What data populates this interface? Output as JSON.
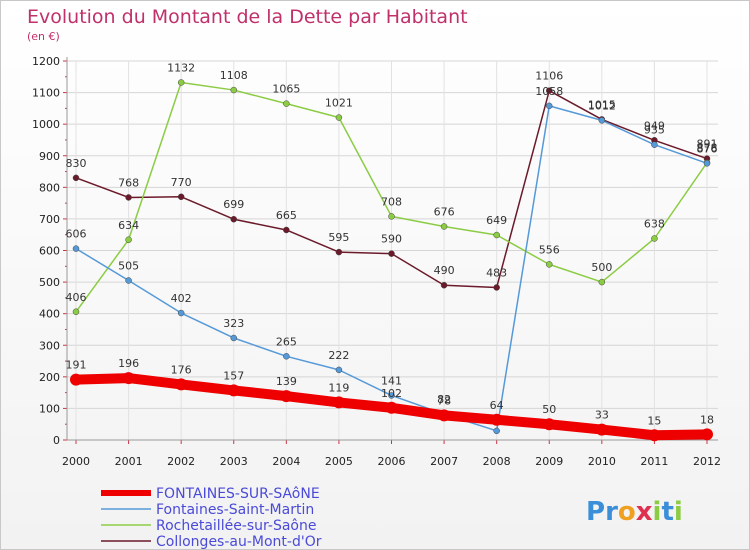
{
  "chart_data": {
    "type": "line",
    "title": "Evolution du Montant de la Dette par Habitant",
    "subtitle": "(en €)",
    "xlabel": "",
    "ylabel": "",
    "ylim": [
      0,
      1200
    ],
    "yticks": [
      0,
      100,
      200,
      300,
      400,
      500,
      600,
      700,
      800,
      900,
      1000,
      1100,
      1200
    ],
    "x": [
      "2000",
      "2001",
      "2002",
      "2003",
      "2004",
      "2005",
      "2006",
      "2007",
      "2008",
      "2009",
      "2010",
      "2011",
      "2012"
    ],
    "grid": true,
    "legend_position": "bottom-left",
    "series": [
      {
        "name": "Collonges-au-Mont-d'Or",
        "color": "#6b1a2a",
        "values": [
          830,
          768,
          770,
          699,
          665,
          595,
          590,
          490,
          483,
          1106,
          1015,
          949,
          891
        ],
        "labels": [
          "830",
          "768",
          "770",
          "699",
          "665",
          "595",
          "590",
          "490",
          "483",
          "1106",
          "1015",
          "949",
          "891"
        ]
      },
      {
        "name": "Rochetaillée-sur-Saône",
        "color": "#8ccc44",
        "values": [
          406,
          634,
          1132,
          1108,
          1065,
          1021,
          708,
          676,
          649,
          556,
          500,
          638,
          878
        ],
        "labels": [
          "406",
          "634",
          "1132",
          "1108",
          "1065",
          "1021",
          "708",
          "676",
          "649",
          "556",
          "500",
          "638",
          "878"
        ]
      },
      {
        "name": "Fontaines-Saint-Martin",
        "color": "#5599d8",
        "values": [
          606,
          505,
          402,
          323,
          265,
          222,
          141,
          82,
          29,
          1058,
          1012,
          935,
          876
        ],
        "labels": [
          "606",
          "505",
          "402",
          "323",
          "265",
          "222",
          "141",
          "82",
          "",
          "1058",
          "1012",
          "935",
          "876"
        ]
      },
      {
        "name": "FONTAINES-SUR-SAÔNE",
        "color": "#ee0000",
        "values": [
          191,
          196,
          176,
          157,
          139,
          119,
          102,
          78,
          64,
          50,
          33,
          15,
          18
        ],
        "labels": [
          "191",
          "196",
          "176",
          "157",
          "139",
          "119",
          "102",
          "78",
          "64",
          "50",
          "33",
          "15",
          "18"
        ]
      }
    ],
    "legend": [
      {
        "name": "FONTAINES-SUR-SAôNE",
        "color": "#ee0000"
      },
      {
        "name": "Fontaines-Saint-Martin",
        "color": "#5599d8"
      },
      {
        "name": "Rochetaillée-sur-Saône",
        "color": "#8ccc44"
      },
      {
        "name": "Collonges-au-Mont-d'Or",
        "color": "#6b1a2a"
      }
    ]
  },
  "brand": {
    "letters": [
      "P",
      "r",
      "o",
      "x",
      "i",
      "t",
      "i"
    ],
    "colors": [
      "#3a8fd8",
      "#3a8fd8",
      "#f0a020",
      "#e03050",
      "#8ccc44",
      "#3a8fd8",
      "#8ccc44"
    ]
  }
}
